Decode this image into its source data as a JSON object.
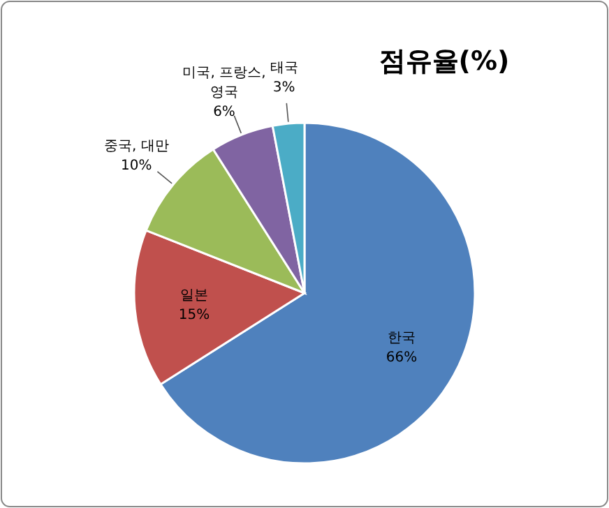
{
  "chart_data": {
    "type": "pie",
    "title": "점유율(%)",
    "categories": [
      "한국",
      "일본",
      "중국, 대만",
      "미국, 프랑스, 영국",
      "태국"
    ],
    "values": [
      66,
      15,
      10,
      6,
      3
    ],
    "colors": [
      "#4f81bd",
      "#c0504d",
      "#9bbb59",
      "#8064a2",
      "#4bacc6"
    ],
    "value_labels": [
      "66%",
      "15%",
      "10%",
      "6%",
      "3%"
    ]
  }
}
